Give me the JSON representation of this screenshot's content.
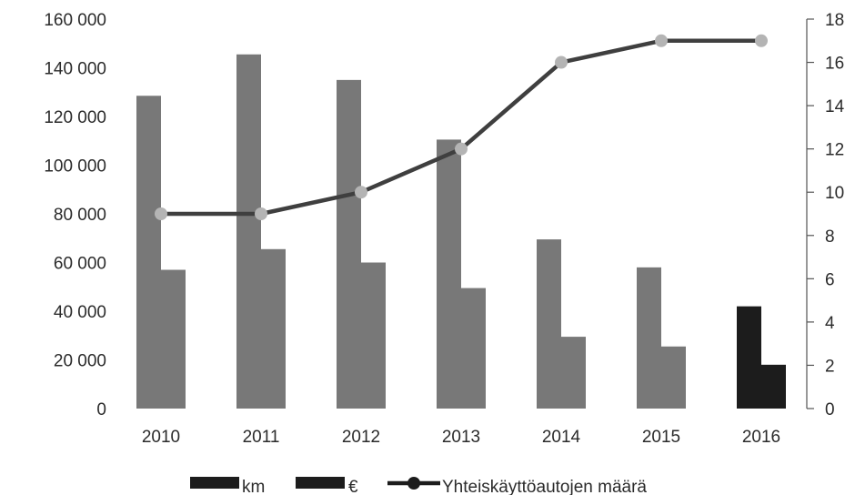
{
  "chart_data": {
    "type": "bar",
    "categories": [
      "2010",
      "2011",
      "2012",
      "2013",
      "2014",
      "2015",
      "2016"
    ],
    "series": [
      {
        "name": "km",
        "type": "bar",
        "axis": "left",
        "values": [
          128500,
          145500,
          135000,
          110500,
          69500,
          58000,
          42000
        ]
      },
      {
        "name": "€",
        "type": "bar",
        "axis": "left",
        "values": [
          57000,
          65500,
          60000,
          49500,
          29500,
          25500,
          18000
        ]
      },
      {
        "name": "Yhteiskäyttöautojen määrä",
        "type": "line",
        "axis": "right",
        "values": [
          9,
          9,
          10,
          12,
          16,
          17,
          17
        ]
      }
    ],
    "ylim": [
      0,
      160000
    ],
    "y2lim": [
      0,
      18
    ],
    "y_ticks": [
      "0",
      "20 000",
      "40 000",
      "60 000",
      "80 000",
      "100 000",
      "120 000",
      "140 000",
      "160 000"
    ],
    "y2_ticks": [
      "0",
      "2",
      "4",
      "6",
      "8",
      "10",
      "12",
      "14",
      "16",
      "18"
    ],
    "legend": {
      "position": "bottom",
      "entries": [
        "km",
        "€",
        "Yhteiskäyttöautojen määrä"
      ]
    },
    "colors": {
      "bar_normal": "#787878",
      "bar_highlight": "#1c1c1c",
      "line": "#3f3f3f",
      "marker": "#b4b4b4",
      "axis": "#555555"
    },
    "grid": false
  }
}
